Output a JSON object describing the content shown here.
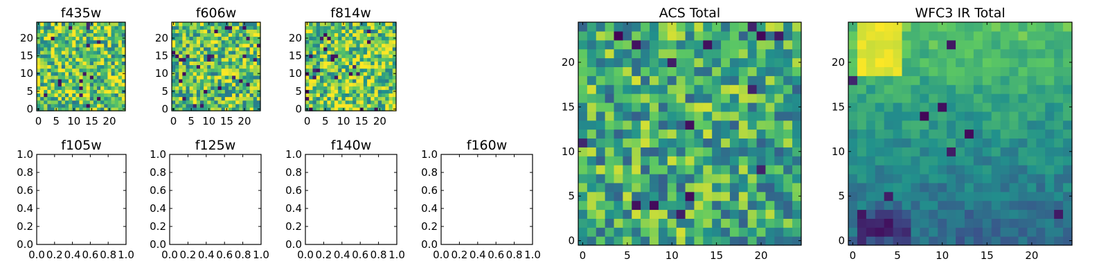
{
  "figure": {
    "colormap": [
      "#440154",
      "#3b528b",
      "#21918c",
      "#5ec962",
      "#fde725"
    ]
  },
  "chart_data": [
    {
      "type": "heatmap",
      "title": "f435w",
      "rows": 25,
      "cols": 25,
      "seed": 11,
      "x_ticks": [
        "0",
        "5",
        "10",
        "15",
        "20"
      ],
      "y_ticks": [
        "0",
        "5",
        "10",
        "15",
        "20"
      ],
      "value_range": [
        0,
        1
      ],
      "noise_mean": 0.72,
      "noise_spread": 0.34,
      "dark_fraction": 0.03
    },
    {
      "type": "heatmap",
      "title": "f606w",
      "rows": 25,
      "cols": 25,
      "seed": 23,
      "x_ticks": [
        "0",
        "5",
        "10",
        "15",
        "20"
      ],
      "y_ticks": [
        "0",
        "5",
        "10",
        "15",
        "20"
      ],
      "value_range": [
        0,
        1
      ],
      "noise_mean": 0.72,
      "noise_spread": 0.34,
      "dark_fraction": 0.04
    },
    {
      "type": "heatmap",
      "title": "f814w",
      "rows": 25,
      "cols": 25,
      "seed": 37,
      "x_ticks": [
        "0",
        "5",
        "10",
        "15",
        "20"
      ],
      "y_ticks": [
        "0",
        "5",
        "10",
        "15",
        "20"
      ],
      "value_range": [
        0,
        1
      ],
      "noise_mean": 0.74,
      "noise_spread": 0.34,
      "dark_fraction": 0.04
    },
    {
      "type": "line",
      "title": "f105w",
      "series": [],
      "xlim": [
        0,
        1
      ],
      "ylim": [
        0,
        1
      ],
      "x_ticks": [
        "0.0",
        "0.2",
        "0.4",
        "0.6",
        "0.8",
        "1.0"
      ],
      "y_ticks": [
        "0.0",
        "0.2",
        "0.4",
        "0.6",
        "0.8",
        "1.0"
      ]
    },
    {
      "type": "line",
      "title": "f125w",
      "series": [],
      "xlim": [
        0,
        1
      ],
      "ylim": [
        0,
        1
      ],
      "x_ticks": [
        "0.0",
        "0.2",
        "0.4",
        "0.6",
        "0.8",
        "1.0"
      ],
      "y_ticks": [
        "0.0",
        "0.2",
        "0.4",
        "0.6",
        "0.8",
        "1.0"
      ]
    },
    {
      "type": "line",
      "title": "f140w",
      "series": [],
      "xlim": [
        0,
        1
      ],
      "ylim": [
        0,
        1
      ],
      "x_ticks": [
        "0.0",
        "0.2",
        "0.4",
        "0.6",
        "0.8",
        "1.0"
      ],
      "y_ticks": [
        "0.0",
        "0.2",
        "0.4",
        "0.6",
        "0.8",
        "1.0"
      ]
    },
    {
      "type": "line",
      "title": "f160w",
      "series": [],
      "xlim": [
        0,
        1
      ],
      "ylim": [
        0,
        1
      ],
      "x_ticks": [
        "0.0",
        "0.2",
        "0.4",
        "0.6",
        "0.8",
        "1.0"
      ],
      "y_ticks": [
        "0.0",
        "0.2",
        "0.4",
        "0.6",
        "0.8",
        "1.0"
      ]
    },
    {
      "type": "heatmap",
      "title": "ACS Total",
      "rows": 25,
      "cols": 25,
      "seed": 53,
      "x_ticks": [
        "0",
        "5",
        "10",
        "15",
        "20"
      ],
      "y_ticks": [
        "0",
        "5",
        "10",
        "15",
        "20"
      ],
      "value_range": [
        0,
        1
      ],
      "noise_mean": 0.62,
      "noise_spread": 0.32,
      "dark_fraction": 0.03
    },
    {
      "type": "heatmap",
      "title": "WFC3 IR Total",
      "rows": 25,
      "cols": 25,
      "seed": 71,
      "x_ticks": [
        "0",
        "5",
        "10",
        "15",
        "20"
      ],
      "y_ticks": [
        "0",
        "5",
        "10",
        "15",
        "20"
      ],
      "value_range": [
        0,
        1
      ],
      "noise_mean": 0.48,
      "noise_spread": 0.1,
      "dark_fraction": 0.01,
      "gradient_top": 0.72,
      "gradient_bottom": 0.33,
      "bright_patch": [
        1,
        5,
        19,
        24
      ],
      "dark_patch": [
        1,
        6,
        0,
        3
      ]
    }
  ]
}
